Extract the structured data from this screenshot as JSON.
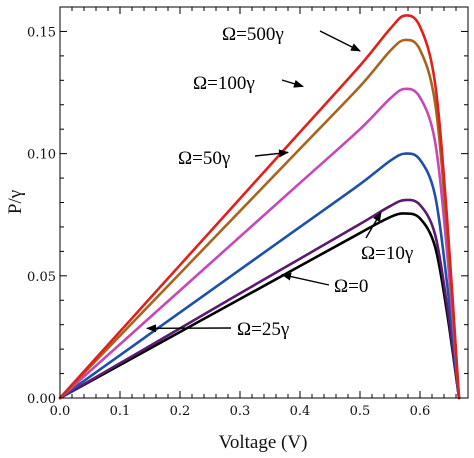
{
  "chart_data": {
    "type": "line",
    "xlabel": "Voltage (V)",
    "ylabel": "P/γ",
    "xlim": [
      0.0,
      0.68
    ],
    "ylim": [
      0.0,
      0.16
    ],
    "x_ticks": [
      "0.0",
      "0.1",
      "0.2",
      "0.3",
      "0.4",
      "0.5",
      "0.6"
    ],
    "y_ticks": [
      "0.00",
      "0.05",
      "0.10",
      "0.15"
    ],
    "x_tick_values": [
      0.0,
      0.1,
      0.2,
      0.3,
      0.4,
      0.5,
      0.6
    ],
    "y_tick_values": [
      0.0,
      0.05,
      0.1,
      0.15
    ],
    "grid": false,
    "series": [
      {
        "name": "Ω=0",
        "color": "#000000",
        "x": [
          0.0,
          0.1,
          0.2,
          0.3,
          0.4,
          0.5,
          0.55,
          0.575,
          0.6,
          0.625,
          0.645,
          0.665
        ],
        "y": [
          0.0,
          0.0135,
          0.027,
          0.0405,
          0.054,
          0.0675,
          0.074,
          0.0755,
          0.0735,
          0.062,
          0.035,
          0.0
        ]
      },
      {
        "name": "Ω=25γ",
        "color": "#5a1a6e",
        "x": [
          0.0,
          0.1,
          0.2,
          0.3,
          0.4,
          0.5,
          0.55,
          0.575,
          0.6,
          0.625,
          0.645,
          0.665
        ],
        "y": [
          0.0,
          0.0142,
          0.0285,
          0.0428,
          0.057,
          0.0712,
          0.0785,
          0.081,
          0.079,
          0.067,
          0.038,
          0.0
        ]
      },
      {
        "name": "Ω=10γ",
        "color": "#1f4fa8",
        "x": [
          0.0,
          0.1,
          0.2,
          0.3,
          0.4,
          0.5,
          0.55,
          0.575,
          0.6,
          0.625,
          0.645,
          0.665
        ],
        "y": [
          0.0,
          0.0175,
          0.035,
          0.0525,
          0.07,
          0.0875,
          0.097,
          0.1,
          0.0975,
          0.083,
          0.047,
          0.0
        ]
      },
      {
        "name": "Ω=50γ",
        "color": "#c548b6",
        "x": [
          0.0,
          0.1,
          0.2,
          0.3,
          0.4,
          0.5,
          0.55,
          0.575,
          0.6,
          0.625,
          0.645,
          0.665
        ],
        "y": [
          0.0,
          0.022,
          0.044,
          0.066,
          0.088,
          0.11,
          0.1225,
          0.1265,
          0.123,
          0.105,
          0.06,
          0.0
        ]
      },
      {
        "name": "Ω=100γ",
        "color": "#a8641e",
        "x": [
          0.0,
          0.1,
          0.2,
          0.3,
          0.4,
          0.5,
          0.55,
          0.575,
          0.6,
          0.625,
          0.645,
          0.665
        ],
        "y": [
          0.0,
          0.0255,
          0.051,
          0.0765,
          0.102,
          0.1275,
          0.142,
          0.1465,
          0.1425,
          0.121,
          0.069,
          0.0
        ]
      },
      {
        "name": "Ω=500γ",
        "color": "#e0201c",
        "x": [
          0.0,
          0.1,
          0.2,
          0.3,
          0.4,
          0.5,
          0.55,
          0.575,
          0.6,
          0.625,
          0.645,
          0.665
        ],
        "y": [
          0.0,
          0.0272,
          0.0544,
          0.0816,
          0.1088,
          0.136,
          0.151,
          0.1565,
          0.152,
          0.129,
          0.074,
          0.0
        ]
      }
    ],
    "annotations": [
      {
        "text": "Ω=500γ",
        "target_series": "Ω=500γ",
        "target_x": 0.5,
        "target_y": 0.142
      },
      {
        "text": "Ω=100γ",
        "target_series": "Ω=100γ",
        "target_x": 0.405,
        "target_y": 0.1275
      },
      {
        "text": "Ω=50γ",
        "target_series": "Ω=50γ",
        "target_x": 0.38,
        "target_y": 0.1005
      },
      {
        "text": "Ω=10γ",
        "target_series": "Ω=25γ",
        "target_x": 0.535,
        "target_y": 0.076
      },
      {
        "text": "Ω=0",
        "target_series": "Ω=0",
        "target_x": 0.37,
        "target_y": 0.0505
      },
      {
        "text": "Ω=25γ",
        "target_series": "Ω=25γ",
        "target_x": 0.145,
        "target_y": 0.0285
      }
    ]
  }
}
